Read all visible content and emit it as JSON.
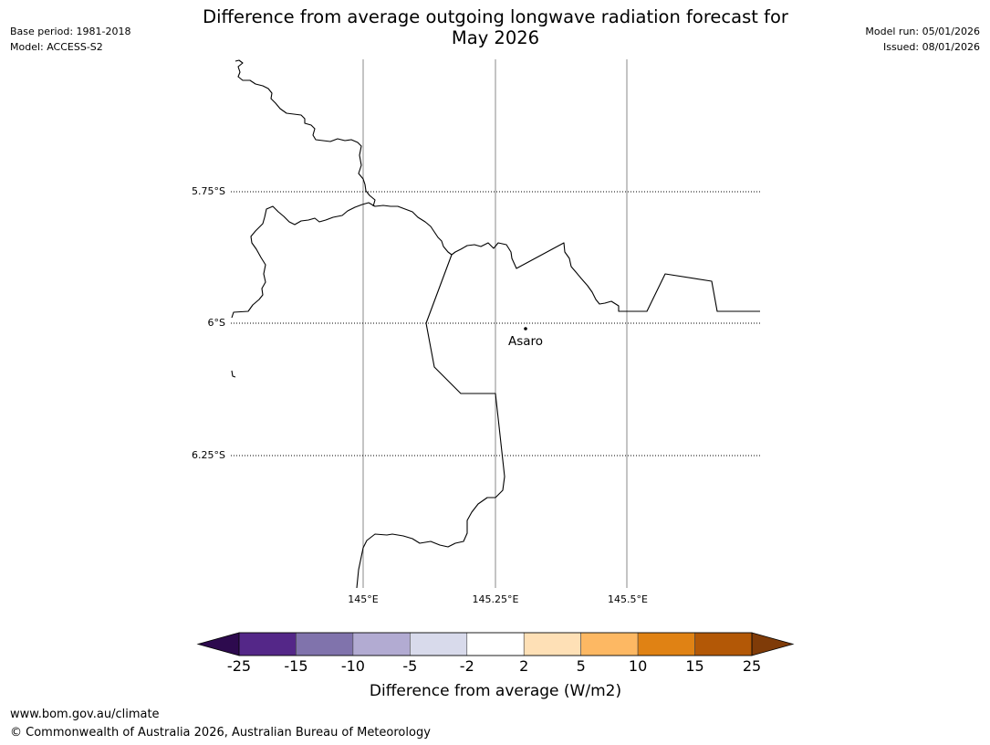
{
  "header": {
    "base_period": "Base period: 1981-2018",
    "model": "Model: ACCESS-S2",
    "model_run": "Model run: 05/01/2026",
    "issued": "Issued: 08/01/2026",
    "title_line1": "Difference from average outgoing longwave radiation forecast for",
    "title_line2": "May 2026"
  },
  "map": {
    "lat_labels": [
      "5.75°S",
      "6°S",
      "6.25°S"
    ],
    "lon_labels": [
      "145°E",
      "145.25°E",
      "145.5°E"
    ],
    "town": {
      "name": "Asaro"
    }
  },
  "colorbar": {
    "label": "Difference from average (W/m2)",
    "ticks": [
      "-25",
      "-15",
      "-10",
      "-5",
      "-2",
      "2",
      "5",
      "10",
      "15",
      "25"
    ],
    "colors": {
      "under": "#2d0a4e",
      "bins": [
        "#542788",
        "#8073ac",
        "#b2abd2",
        "#d8daeb",
        "#ffffff",
        "#fee0b6",
        "#fdb863",
        "#e08214",
        "#b35806"
      ],
      "over": "#7f3b08"
    }
  },
  "footer": {
    "url": "www.bom.gov.au/climate",
    "copyright": "© Commonwealth of Australia 2026, Australian Bureau of Meteorology"
  }
}
